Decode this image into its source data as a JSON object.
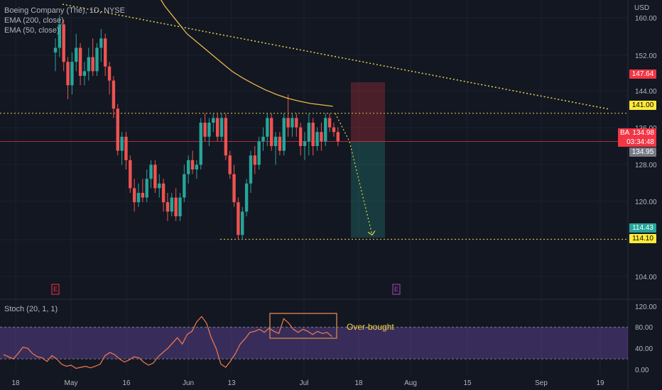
{
  "legend": {
    "symbol_line": "Boeing Company (The), 1D, NYSE",
    "ema200": "EMA (200, close)",
    "ema50": "EMA (50, close)",
    "stoch": "Stoch (20, 1, 1)"
  },
  "currency": "USD",
  "price_axis": [
    "160.00",
    "152.00",
    "144.00",
    "136.00",
    "128.00",
    "120.00",
    "104.00"
  ],
  "stoch_axis": [
    "120.00",
    "80.00",
    "40.00",
    "0.00"
  ],
  "time_axis": [
    "18",
    "May",
    "16",
    "Jun",
    "13",
    "Jul",
    "18",
    "Aug",
    "15",
    "Sep",
    "19"
  ],
  "price_tags": {
    "stop": "147.64",
    "resistance": "141.00",
    "last_symbol": "BA",
    "last_price": "134.98",
    "countdown": "03:34:48",
    "entry": "134.95",
    "target": "114.43",
    "support": "114.10"
  },
  "annotation": "Over-bought",
  "earnings_marker": "E",
  "colors": {
    "background": "#131722",
    "up": "#26a69a",
    "down": "#ef5350",
    "ema": "#e8b84b",
    "stoch_band": "#7e57c2",
    "stoch_line": "#f57a50",
    "trendline": "#e6d24d"
  },
  "chart_data": {
    "type": "candlestick",
    "ylim": [
      98,
      162
    ],
    "candles": [
      [
        154,
        157,
        150,
        155
      ],
      [
        155,
        162,
        153,
        160
      ],
      [
        160,
        161,
        150,
        152
      ],
      [
        152,
        153,
        144,
        147
      ],
      [
        147,
        154,
        145,
        152
      ],
      [
        152,
        158,
        150,
        155
      ],
      [
        155,
        156,
        147,
        149
      ],
      [
        149,
        152,
        147,
        150
      ],
      [
        150,
        155,
        148,
        153
      ],
      [
        153,
        157,
        149,
        150
      ],
      [
        150,
        156,
        149,
        155
      ],
      [
        155,
        159,
        152,
        157
      ],
      [
        157,
        158,
        149,
        151
      ],
      [
        151,
        152,
        145,
        148
      ],
      [
        148,
        149,
        140,
        142
      ],
      [
        142,
        143,
        132,
        133
      ],
      [
        133,
        137,
        130,
        136
      ],
      [
        136,
        137,
        129,
        131
      ],
      [
        131,
        132,
        124,
        125
      ],
      [
        125,
        127,
        120,
        122
      ],
      [
        122,
        126,
        121,
        124
      ],
      [
        124,
        127,
        122,
        123
      ],
      [
        123,
        129,
        122,
        127
      ],
      [
        127,
        131,
        125,
        130
      ],
      [
        130,
        131,
        124,
        125
      ],
      [
        125,
        128,
        123,
        126
      ],
      [
        126,
        127,
        120,
        122
      ],
      [
        122,
        124,
        118,
        120
      ],
      [
        120,
        124,
        119,
        123
      ],
      [
        123,
        125,
        118,
        119
      ],
      [
        119,
        124,
        118,
        123
      ],
      [
        123,
        130,
        122,
        128
      ],
      [
        128,
        132,
        126,
        131
      ],
      [
        131,
        133,
        128,
        129
      ],
      [
        129,
        131,
        127,
        130
      ],
      [
        130,
        140,
        129,
        139
      ],
      [
        139,
        141,
        135,
        136
      ],
      [
        136,
        140,
        134,
        139
      ],
      [
        139,
        141,
        137,
        140
      ],
      [
        140,
        141,
        135,
        136
      ],
      [
        136,
        141,
        135,
        140
      ],
      [
        140,
        141,
        131,
        132
      ],
      [
        132,
        133,
        127,
        128
      ],
      [
        128,
        130,
        121,
        122
      ],
      [
        122,
        123,
        114,
        115
      ],
      [
        115,
        121,
        114,
        120
      ],
      [
        120,
        127,
        119,
        126
      ],
      [
        126,
        133,
        124,
        132
      ],
      [
        132,
        134,
        128,
        130
      ],
      [
        130,
        136,
        129,
        135
      ],
      [
        135,
        138,
        133,
        136
      ],
      [
        136,
        141,
        134,
        140
      ],
      [
        140,
        141,
        133,
        134
      ],
      [
        134,
        137,
        130,
        136
      ],
      [
        136,
        137,
        132,
        133
      ],
      [
        133,
        141,
        132,
        140
      ],
      [
        140,
        145,
        136,
        138
      ],
      [
        138,
        141,
        136,
        140
      ],
      [
        140,
        141,
        136,
        138
      ],
      [
        138,
        139,
        132,
        134
      ],
      [
        134,
        137,
        131,
        135
      ],
      [
        135,
        141,
        132,
        139
      ],
      [
        139,
        140,
        132,
        134
      ],
      [
        134,
        138,
        133,
        137
      ],
      [
        137,
        139,
        133,
        135
      ],
      [
        135,
        141,
        134,
        140
      ],
      [
        140,
        141,
        137,
        138
      ],
      [
        138,
        139,
        136,
        137
      ],
      [
        137,
        138,
        134,
        135
      ]
    ],
    "ema50": [
      172,
      168,
      164,
      161,
      158,
      156,
      154,
      152,
      150,
      148.5,
      147.2,
      146,
      145,
      144.2,
      143.6,
      143.1,
      142.8,
      142.5
    ],
    "stoch": [
      28,
      24,
      20,
      30,
      42,
      40,
      30,
      24,
      22,
      15,
      26,
      20,
      10,
      6,
      8,
      2,
      4,
      6,
      3,
      6,
      10,
      26,
      32,
      28,
      20,
      14,
      18,
      24,
      22,
      14,
      8,
      12,
      24,
      32,
      40,
      50,
      60,
      48,
      66,
      72,
      90,
      100,
      88,
      60,
      40,
      10,
      4,
      16,
      30,
      48,
      58,
      70,
      72,
      76,
      70,
      78,
      72,
      68,
      96,
      88,
      76,
      70,
      76,
      72,
      66,
      72,
      68,
      70,
      62
    ]
  }
}
